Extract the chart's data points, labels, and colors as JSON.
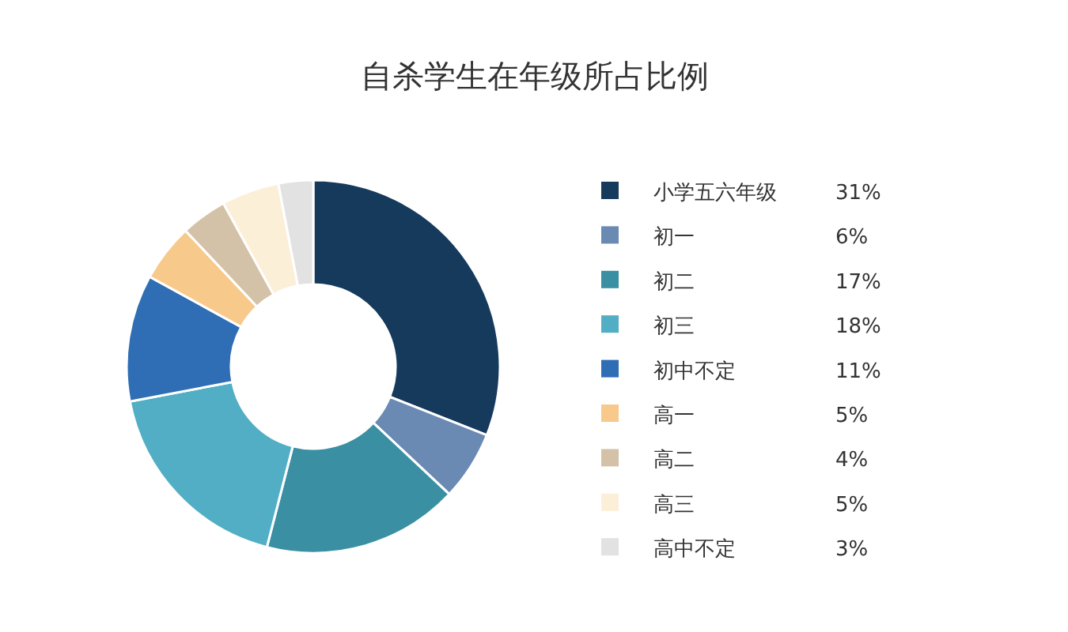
{
  "chart_data": {
    "type": "donut",
    "title": "自杀学生在年级所占比例",
    "categories": [
      "小学五六年级",
      "初一",
      "初二",
      "初三",
      "初中不定",
      "高一",
      "高二",
      "高三",
      "高中不定"
    ],
    "values": [
      31,
      6,
      17,
      18,
      11,
      5,
      4,
      5,
      3
    ],
    "value_labels": [
      "31%",
      "6%",
      "17%",
      "18%",
      "11%",
      "5%",
      "4%",
      "5%",
      "3%"
    ],
    "colors": [
      "#163a5c",
      "#6a8ab4",
      "#3a8fa3",
      "#52aec4",
      "#2f6db4",
      "#f7c98a",
      "#d4c2a8",
      "#fcefd8",
      "#e2e2e2"
    ],
    "legend": "right"
  }
}
